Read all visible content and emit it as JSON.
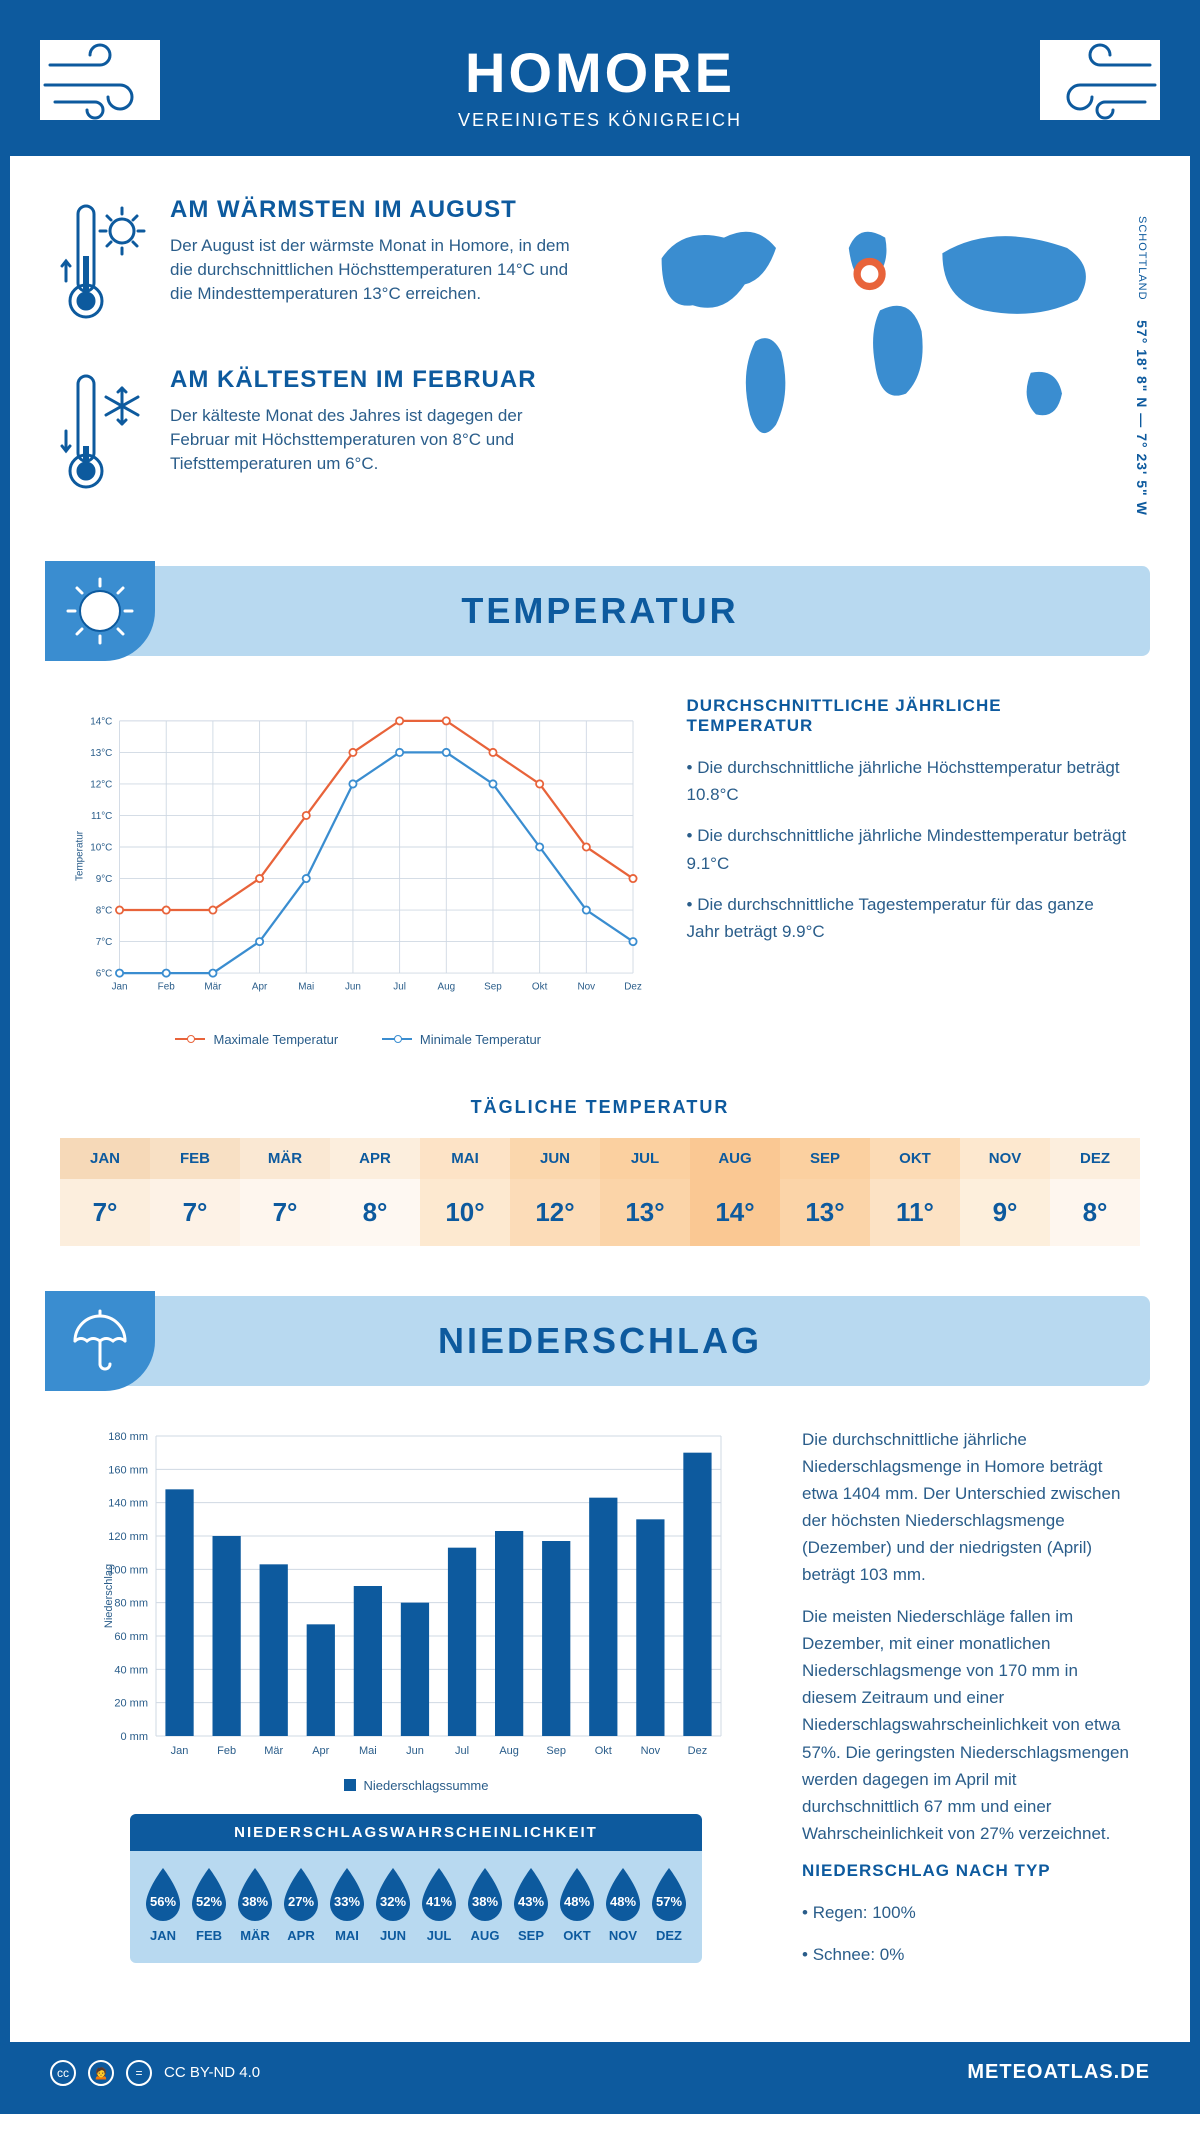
{
  "colors": {
    "primary": "#0d5a9e",
    "light_blue": "#b8d9f0",
    "medium_blue": "#3a8dd0",
    "text": "#2a5d8a",
    "orange": "#e8633a",
    "chart_blue": "#3a8dd0",
    "grid": "#cfd8e3"
  },
  "header": {
    "title": "HOMORE",
    "subtitle": "VEREINIGTES KÖNIGREICH"
  },
  "coords": {
    "lat": "57° 18' 8\" N",
    "sep": "—",
    "lon": "7° 23' 5\" W",
    "region": "SCHOTTLAND"
  },
  "warmest": {
    "title": "AM WÄRMSTEN IM AUGUST",
    "text": "Der August ist der wärmste Monat in Homore, in dem die durchschnittlichen Höchsttemperaturen 14°C und die Mindesttemperaturen 13°C erreichen."
  },
  "coldest": {
    "title": "AM KÄLTESTEN IM FEBRUAR",
    "text": "Der kälteste Monat des Jahres ist dagegen der Februar mit Höchsttemperaturen von 8°C und Tiefsttemperaturen um 6°C."
  },
  "temp_section": {
    "title": "TEMPERATUR"
  },
  "temp_chart": {
    "months": [
      "Jan",
      "Feb",
      "Mär",
      "Apr",
      "Mai",
      "Jun",
      "Jul",
      "Aug",
      "Sep",
      "Okt",
      "Nov",
      "Dez"
    ],
    "max": [
      8,
      8,
      8,
      9,
      11,
      13,
      14,
      14,
      13,
      12,
      10,
      9
    ],
    "min": [
      6,
      6,
      6,
      7,
      9,
      12,
      13,
      13,
      12,
      10,
      8,
      7
    ],
    "ylim": [
      6,
      14
    ],
    "ytick_step": 1,
    "ylabel": "Temperatur",
    "y_unit": "°C",
    "legend_max": "Maximale Temperatur",
    "legend_min": "Minimale Temperatur",
    "max_color": "#e8633a",
    "min_color": "#3a8dd0"
  },
  "temp_desc": {
    "title": "DURCHSCHNITTLICHE JÄHRLICHE TEMPERATUR",
    "items": [
      "Die durchschnittliche jährliche Höchsttemperatur beträgt 10.8°C",
      "Die durchschnittliche jährliche Mindesttemperatur beträgt 9.1°C",
      "Die durchschnittliche Tagestemperatur für das ganze Jahr beträgt 9.9°C"
    ]
  },
  "daily_temp": {
    "title": "TÄGLICHE TEMPERATUR",
    "months": [
      "JAN",
      "FEB",
      "MÄR",
      "APR",
      "MAI",
      "JUN",
      "JUL",
      "AUG",
      "SEP",
      "OKT",
      "NOV",
      "DEZ"
    ],
    "values": [
      "7°",
      "7°",
      "7°",
      "8°",
      "10°",
      "12°",
      "13°",
      "14°",
      "13°",
      "11°",
      "9°",
      "8°"
    ],
    "header_colors": [
      "#f6d9b8",
      "#f8e0c4",
      "#fae8d3",
      "#fceedd",
      "#fde3c6",
      "#fbd7ad",
      "#fbd0a0",
      "#fac893",
      "#fbd0a0",
      "#fcdbb5",
      "#fde8cf",
      "#fceedd"
    ],
    "value_colors": [
      "#fceedd",
      "#fdf2e6",
      "#fef6ee",
      "#fef8f2",
      "#fde9d0",
      "#fcdcb8",
      "#fbd4a8",
      "#fac893",
      "#fbd4a8",
      "#fce2c4",
      "#fdefdc",
      "#fef6ee"
    ]
  },
  "precip_section": {
    "title": "NIEDERSCHLAG"
  },
  "precip_chart": {
    "months": [
      "Jan",
      "Feb",
      "Mär",
      "Apr",
      "Mai",
      "Jun",
      "Jul",
      "Aug",
      "Sep",
      "Okt",
      "Nov",
      "Dez"
    ],
    "values": [
      148,
      120,
      103,
      67,
      90,
      80,
      113,
      123,
      117,
      143,
      130,
      170
    ],
    "ylim": [
      0,
      180
    ],
    "ytick_step": 20,
    "ylabel": "Niederschlag",
    "y_unit": " mm",
    "bar_color": "#0d5a9e",
    "legend": "Niederschlagssumme"
  },
  "precip_desc": {
    "p1": "Die durchschnittliche jährliche Niederschlagsmenge in Homore beträgt etwa 1404 mm. Der Unterschied zwischen der höchsten Niederschlagsmenge (Dezember) und der niedrigsten (April) beträgt 103 mm.",
    "p2": "Die meisten Niederschläge fallen im Dezember, mit einer monatlichen Niederschlagsmenge von 170 mm in diesem Zeitraum und einer Niederschlagswahrscheinlichkeit von etwa 57%. Die geringsten Niederschlagsmengen werden dagegen im April mit durchschnittlich 67 mm und einer Wahrscheinlichkeit von 27% verzeichnet.",
    "type_title": "NIEDERSCHLAG NACH TYP",
    "types": [
      "Regen: 100%",
      "Schnee: 0%"
    ]
  },
  "precip_prob": {
    "title": "NIEDERSCHLAGSWAHRSCHEINLICHKEIT",
    "months": [
      "JAN",
      "FEB",
      "MÄR",
      "APR",
      "MAI",
      "JUN",
      "JUL",
      "AUG",
      "SEP",
      "OKT",
      "NOV",
      "DEZ"
    ],
    "values": [
      "56%",
      "52%",
      "38%",
      "27%",
      "33%",
      "32%",
      "41%",
      "38%",
      "43%",
      "48%",
      "48%",
      "57%"
    ]
  },
  "footer": {
    "license": "CC BY-ND 4.0",
    "site": "METEOATLAS.DE"
  }
}
